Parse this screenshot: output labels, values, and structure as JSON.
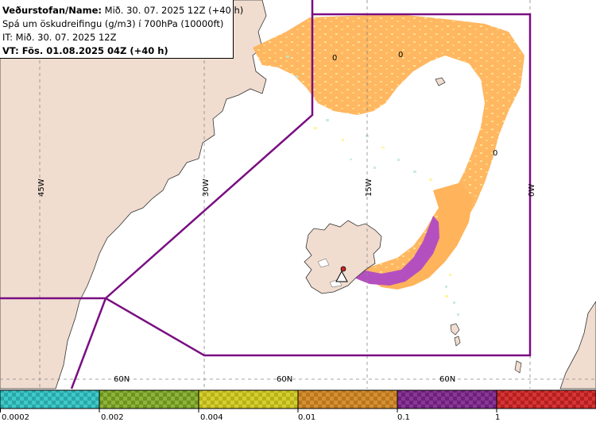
{
  "info": {
    "line1_label": "Veðurstofan/Name:",
    "line1_value": " Mið. 30. 07. 2025 12Z (+40 h)",
    "line2": "Spá um öskudreifingu (g/m3) í 700hPa (10000ft)",
    "line3": "IT: Mið. 30. 07. 2025 12Z",
    "line4": "VT: Fös. 01.08.2025 04Z (+40 h)"
  },
  "gridlabels": {
    "lon": [
      "45W",
      "30W",
      "15W",
      "0W"
    ],
    "lat": [
      "60N",
      "60N",
      "60N"
    ]
  },
  "contour_labels": [
    "0",
    "0",
    "0"
  ],
  "colorbar": {
    "ticks": [
      "0.0002",
      "0.002",
      "0.004",
      "0.01",
      "0.1",
      "1"
    ],
    "colors": [
      "#3fc9c9",
      "#7fa82a",
      "#c8c21f",
      "#c98522",
      "#7e2a8a",
      "#cc2626"
    ]
  },
  "colors": {
    "land": "#f0ddd0",
    "ash_low": "#ffb35a",
    "ash_high": "#b44fc0",
    "boundary": "#7a0e82"
  }
}
